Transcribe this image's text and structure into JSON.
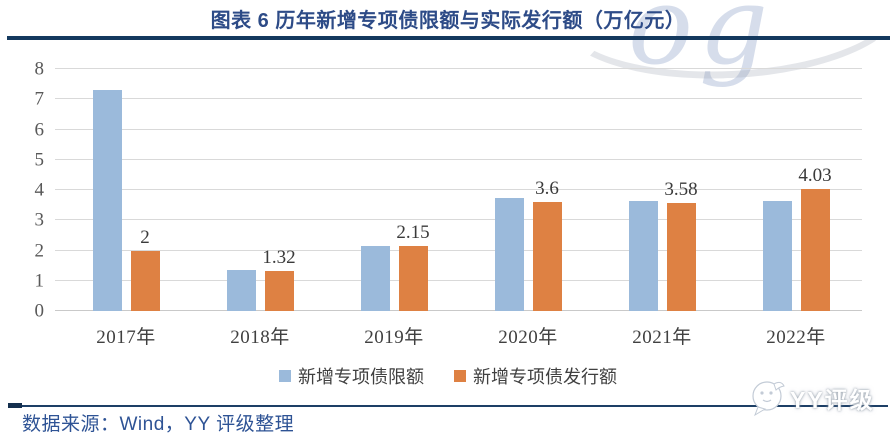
{
  "header": {
    "title": "图表 6 历年新增专项债限额与实际发行额（万亿元）"
  },
  "watermark": {
    "text": "og"
  },
  "chart_data": {
    "type": "bar",
    "title": "图表 6 历年新增专项债限额与实际发行额（万亿元）",
    "value_unit": "万亿元",
    "categories": [
      "2017年",
      "2018年",
      "2019年",
      "2020年",
      "2021年",
      "2022年"
    ],
    "series": [
      {
        "name": "新增专项债限额",
        "color": "#9bbadb",
        "values": [
          7.3,
          1.35,
          2.15,
          3.75,
          3.65,
          3.65
        ],
        "data_labels": false
      },
      {
        "name": "新增专项债发行额",
        "color": "#de8143",
        "values": [
          2,
          1.32,
          2.15,
          3.6,
          3.58,
          4.03
        ],
        "data_labels": true,
        "labels": [
          "2",
          "1.32",
          "2.15",
          "3.6",
          "3.58",
          "4.03"
        ]
      }
    ],
    "ylim": [
      0,
      8
    ],
    "yticks": [
      0,
      1,
      2,
      3,
      4,
      5,
      6,
      7,
      8
    ],
    "grid": true,
    "legend_position": "bottom"
  },
  "footer": {
    "source": "数据来源：Wind，YY 评级整理",
    "logo_text": "YY评级"
  }
}
